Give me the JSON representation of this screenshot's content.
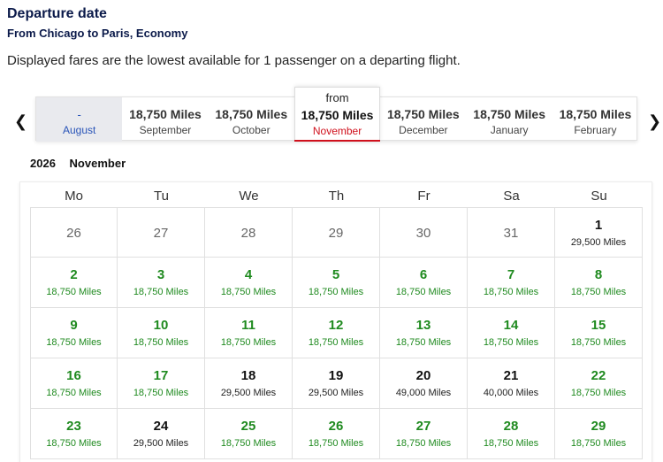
{
  "header": {
    "title": "Departure date",
    "subtitle": "From Chicago to Paris, Economy",
    "info": "Displayed fares are the lowest available for 1 passenger on a departing flight."
  },
  "month_strip": {
    "prev_icon": "chevron-left-icon",
    "next_icon": "chevron-right-icon",
    "months": [
      {
        "price": "-",
        "label": "August",
        "state": "disabled"
      },
      {
        "price": "18,750 Miles",
        "label": "September",
        "state": "normal"
      },
      {
        "price": "18,750 Miles",
        "label": "October",
        "state": "normal"
      },
      {
        "from": "from",
        "price": "18,750 Miles",
        "label": "November",
        "state": "selected"
      },
      {
        "price": "18,750 Miles",
        "label": "December",
        "state": "normal"
      },
      {
        "price": "18,750 Miles",
        "label": "January",
        "state": "normal"
      },
      {
        "price": "18,750 Miles",
        "label": "February",
        "state": "normal"
      }
    ]
  },
  "calendar": {
    "year": "2026",
    "month": "November",
    "weekdays": [
      "Mo",
      "Tu",
      "We",
      "Th",
      "Fr",
      "Sa",
      "Su"
    ],
    "weeks": [
      [
        {
          "day": "26",
          "fare": "",
          "type": "empty"
        },
        {
          "day": "27",
          "fare": "",
          "type": "empty"
        },
        {
          "day": "28",
          "fare": "",
          "type": "empty"
        },
        {
          "day": "29",
          "fare": "",
          "type": "empty"
        },
        {
          "day": "30",
          "fare": "",
          "type": "empty"
        },
        {
          "day": "31",
          "fare": "",
          "type": "empty"
        },
        {
          "day": "1",
          "fare": "29,500 Miles",
          "type": "dark"
        }
      ],
      [
        {
          "day": "2",
          "fare": "18,750 Miles",
          "type": "green"
        },
        {
          "day": "3",
          "fare": "18,750 Miles",
          "type": "green"
        },
        {
          "day": "4",
          "fare": "18,750 Miles",
          "type": "green"
        },
        {
          "day": "5",
          "fare": "18,750 Miles",
          "type": "green"
        },
        {
          "day": "6",
          "fare": "18,750 Miles",
          "type": "green"
        },
        {
          "day": "7",
          "fare": "18,750 Miles",
          "type": "green"
        },
        {
          "day": "8",
          "fare": "18,750 Miles",
          "type": "green"
        }
      ],
      [
        {
          "day": "9",
          "fare": "18,750 Miles",
          "type": "green"
        },
        {
          "day": "10",
          "fare": "18,750 Miles",
          "type": "green"
        },
        {
          "day": "11",
          "fare": "18,750 Miles",
          "type": "green"
        },
        {
          "day": "12",
          "fare": "18,750 Miles",
          "type": "green"
        },
        {
          "day": "13",
          "fare": "18,750 Miles",
          "type": "green"
        },
        {
          "day": "14",
          "fare": "18,750 Miles",
          "type": "green"
        },
        {
          "day": "15",
          "fare": "18,750 Miles",
          "type": "green"
        }
      ],
      [
        {
          "day": "16",
          "fare": "18,750 Miles",
          "type": "green"
        },
        {
          "day": "17",
          "fare": "18,750 Miles",
          "type": "green"
        },
        {
          "day": "18",
          "fare": "29,500 Miles",
          "type": "dark"
        },
        {
          "day": "19",
          "fare": "29,500 Miles",
          "type": "dark"
        },
        {
          "day": "20",
          "fare": "49,000 Miles",
          "type": "dark"
        },
        {
          "day": "21",
          "fare": "40,000 Miles",
          "type": "dark"
        },
        {
          "day": "22",
          "fare": "18,750 Miles",
          "type": "green"
        }
      ],
      [
        {
          "day": "23",
          "fare": "18,750 Miles",
          "type": "green"
        },
        {
          "day": "24",
          "fare": "29,500 Miles",
          "type": "dark"
        },
        {
          "day": "25",
          "fare": "18,750 Miles",
          "type": "green"
        },
        {
          "day": "26",
          "fare": "18,750 Miles",
          "type": "green"
        },
        {
          "day": "27",
          "fare": "18,750 Miles",
          "type": "green"
        },
        {
          "day": "28",
          "fare": "18,750 Miles",
          "type": "green"
        },
        {
          "day": "29",
          "fare": "18,750 Miles",
          "type": "green"
        }
      ]
    ]
  },
  "colors": {
    "title": "#0b1a4a",
    "fare_low": "#1f8a1f",
    "selected_accent": "#d0101c",
    "disabled_month_text": "#2a55b8"
  }
}
